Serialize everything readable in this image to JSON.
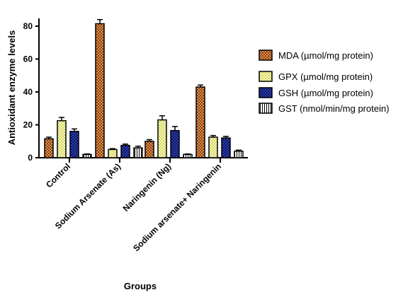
{
  "chart_data": {
    "type": "bar",
    "ylabel": "Antioxidant enzyme levels",
    "xlabel": "Groups",
    "ylim": [
      0,
      85
    ],
    "yticks": [
      0,
      20,
      40,
      60,
      80
    ],
    "legend_position": "right",
    "categories": [
      "Control",
      "Sodium Arsenate (As)",
      "Naringenin (Ng)",
      "Sodium arsenate+ Naringenin"
    ],
    "series": [
      {
        "name": "MDA (µmol/mg protein)",
        "color": "#b5651d",
        "pattern": "checker",
        "values": [
          11.5,
          81.5,
          10.0,
          43.0
        ],
        "errors": [
          1.0,
          2.5,
          1.0,
          1.2
        ]
      },
      {
        "name": "GPX (µmol/mg protein)",
        "color": "#ffffa0",
        "pattern": "dots",
        "values": [
          22.5,
          5.0,
          23.0,
          12.5
        ],
        "errors": [
          2.0,
          0.5,
          2.5,
          1.0
        ]
      },
      {
        "name": "GSH (µmol/mg protein)",
        "color": "#1a237e",
        "pattern": "checker",
        "values": [
          16.0,
          7.5,
          16.5,
          12.0
        ],
        "errors": [
          1.5,
          0.8,
          2.5,
          1.0
        ]
      },
      {
        "name": "GST (nmol/min/mg protein)",
        "color": "#ffffff",
        "pattern": "vlines",
        "values": [
          2.0,
          6.0,
          2.0,
          4.0
        ],
        "errors": [
          0.3,
          1.0,
          0.3,
          0.6
        ]
      }
    ]
  }
}
